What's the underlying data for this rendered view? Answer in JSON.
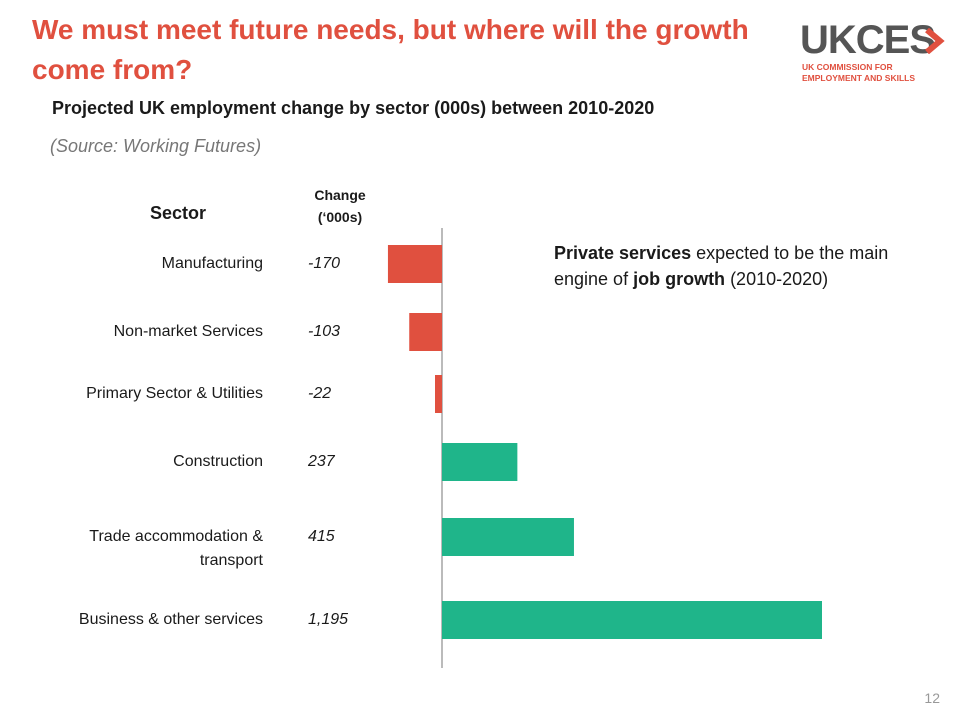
{
  "slide": {
    "title": "We must meet future needs, but where will the growth come from?",
    "subtitle": "Projected UK employment change by sector (000s) between 2010-2020",
    "source": "(Source: Working Futures)",
    "page_number": "12"
  },
  "logo": {
    "word": "UKCES",
    "sub_line_1": "UK COMMISSION FOR",
    "sub_line_2": "EMPLOYMENT AND SKILLS"
  },
  "table_headers": {
    "sector": "Sector",
    "change_line_1": "Change",
    "change_line_2": "(‘000s)"
  },
  "annotation": {
    "bold_1": "Private services",
    "text_1": " expected to be the main engine of ",
    "bold_2": "job growth",
    "text_2": " (2010-2020)"
  },
  "colors": {
    "negative": "#e0503f",
    "positive": "#1fb58a",
    "title": "#e0503f"
  },
  "chart_data": {
    "type": "bar",
    "orientation": "horizontal",
    "categories": [
      [
        "Manufacturing"
      ],
      [
        "Non-market Services"
      ],
      [
        "Primary Sector & Utilities"
      ],
      [
        "Construction"
      ],
      [
        "Trade accommodation &",
        "transport"
      ],
      [
        "Business & other services"
      ]
    ],
    "values": [
      -170,
      -103,
      -22,
      237,
      415,
      1195
    ],
    "value_labels": [
      "-170",
      "-103",
      "-22",
      "237",
      "415",
      "1,195"
    ],
    "xlabel": "",
    "ylabel": "",
    "grid": false,
    "legend": "none"
  }
}
